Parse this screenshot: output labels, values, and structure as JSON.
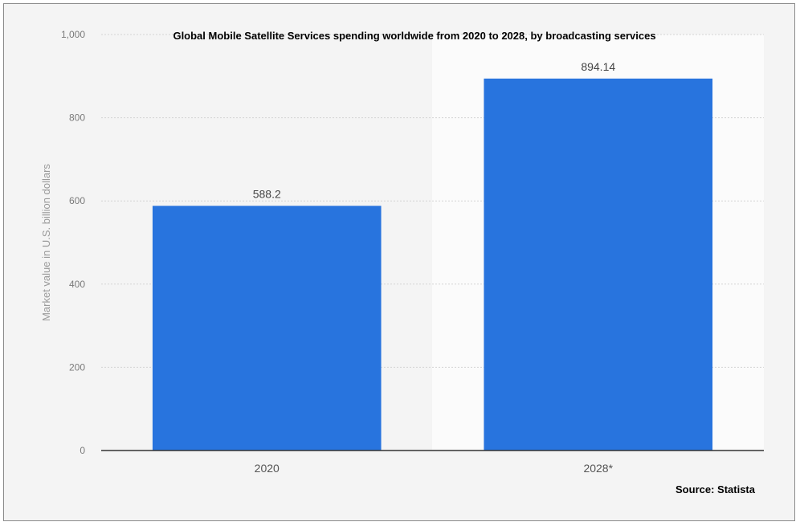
{
  "chart_data": {
    "type": "bar",
    "title": "Global Mobile Satellite Services spending worldwide from 2020 to 2028, by broadcasting services",
    "xlabel": "",
    "ylabel": "Market value in U.S. billion dollars",
    "categories": [
      "2020",
      "2028*"
    ],
    "values": [
      588.2,
      894.14
    ],
    "value_labels": [
      "588.2",
      "894.14"
    ],
    "ylim": [
      0,
      1000
    ],
    "yticks": [
      0,
      200,
      400,
      600,
      800,
      1000
    ],
    "ytick_labels": [
      "0",
      "200",
      "400",
      "600",
      "800",
      "1,000"
    ],
    "grid": true,
    "bar_color": "#2874de",
    "source": "Source: Statista"
  }
}
